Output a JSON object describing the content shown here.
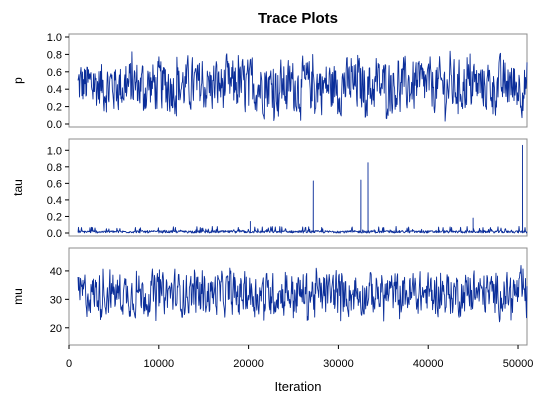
{
  "figure": {
    "title": "Trace Plots",
    "xlabel": "Iteration",
    "series_color": "#0b2e9a",
    "frame_color": "#8c8c8c"
  },
  "chart_data": [
    {
      "type": "line",
      "ylabel": "p",
      "xlim": [
        0,
        51000
      ],
      "ylim": [
        0,
        1.0
      ],
      "yticks": [
        "0.0",
        "0.2",
        "0.4",
        "0.6",
        "0.8",
        "1.0"
      ],
      "xticks": [
        "0",
        "10000",
        "20000",
        "30000",
        "40000",
        "50000"
      ],
      "x_range": [
        1000,
        51000
      ],
      "center": 0.38,
      "typical_range": [
        0.03,
        0.85
      ],
      "spikes": []
    },
    {
      "type": "line",
      "ylabel": "tau",
      "xlim": [
        0,
        51000
      ],
      "ylim": [
        0,
        1.1
      ],
      "yticks": [
        "0.0",
        "0.2",
        "0.4",
        "0.6",
        "0.8",
        "1.0"
      ],
      "xticks": [
        "0",
        "10000",
        "20000",
        "30000",
        "40000",
        "50000"
      ],
      "x_range": [
        1000,
        51000
      ],
      "center": 0.02,
      "typical_range": [
        0.0,
        0.08
      ],
      "spikes": [
        {
          "x": 27200,
          "y": 0.63
        },
        {
          "x": 32500,
          "y": 0.64
        },
        {
          "x": 33300,
          "y": 0.85
        },
        {
          "x": 50500,
          "y": 1.06
        },
        {
          "x": 20200,
          "y": 0.14
        },
        {
          "x": 45000,
          "y": 0.18
        }
      ]
    },
    {
      "type": "line",
      "ylabel": "mu",
      "xlim": [
        0,
        51000
      ],
      "ylim": [
        15,
        47
      ],
      "yticks": [
        "20",
        "30",
        "40"
      ],
      "xticks": [
        "0",
        "10000",
        "20000",
        "30000",
        "40000",
        "50000"
      ],
      "x_range": [
        1000,
        51000
      ],
      "center": 31,
      "typical_range": [
        22,
        42
      ],
      "spikes": []
    }
  ]
}
